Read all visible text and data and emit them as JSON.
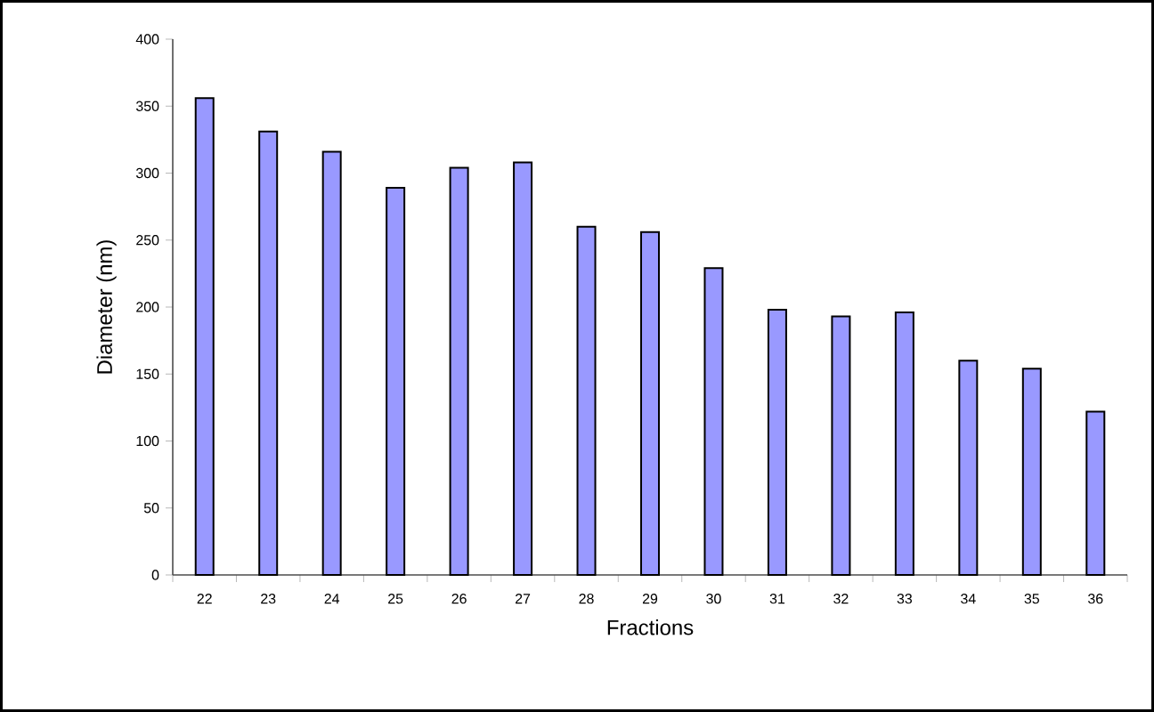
{
  "chart_data": {
    "type": "bar",
    "xlabel": "Fractions",
    "ylabel": "Diameter (nm)",
    "categories": [
      "22",
      "23",
      "24",
      "25",
      "26",
      "27",
      "28",
      "29",
      "30",
      "31",
      "32",
      "33",
      "34",
      "35",
      "36"
    ],
    "values": [
      356,
      331,
      316,
      289,
      304,
      308,
      260,
      256,
      229,
      198,
      193,
      196,
      160,
      154,
      122
    ],
    "color": "#9999ff",
    "ylim": [
      0,
      400
    ],
    "yticks": [
      0,
      50,
      100,
      150,
      200,
      250,
      300,
      350,
      400
    ],
    "grid": false
  }
}
